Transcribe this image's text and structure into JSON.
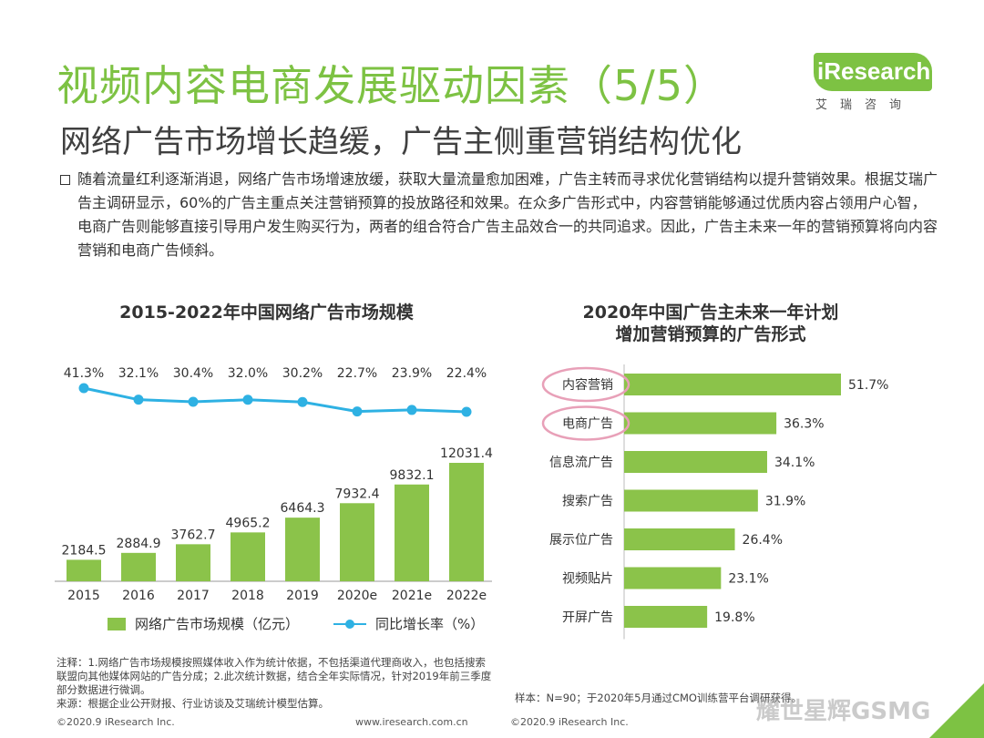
{
  "title": "视频内容电商发展驱动因素（5/5）",
  "subtitle": "网络广告市场增长趋缓，广告主侧重营销结构优化",
  "logo": {
    "text": "iResearch",
    "cn": "艾瑞咨询"
  },
  "body_text": "随着流量红利逐渐消退，网络广告市场增速放缓，获取大量流量愈加困难，广告主转而寻求优化营销结构以提升营销效果。根据艾瑞广告主调研显示，60%的广告主重点关注营销预算的投放路径和效果。在众多广告形式中，内容营销能够通过优质内容占领用户心智，电商广告则能够直接引导用户发生购买行为，两者的组合符合广告主品效合一的共同追求。因此，广告主未来一年的营销预算将向内容营销和电商广告倾斜。",
  "legend": {
    "bar": "网络广告市场规模（亿元）",
    "line": "同比增长率（%）"
  },
  "note": "注释：1.网络广告市场规模按照媒体收入作为统计依据，不包括渠道代理商收入，也包括搜索联盟向其他媒体网站的广告分成；2.此次统计数据，结合全年实际情况，针对2019年前三季度部分数据进行微调。",
  "source": "来源：根据企业公开财报、行业访谈及艾瑞统计模型估算。",
  "sample": "样本：N=90；于2020年5月通过CMO训练营平台调研获得。",
  "footer_left": "©2020.9 iResearch Inc.",
  "footer_mid": "www.iresearch.com.cn",
  "footer_right": "©2020.9 iResearch Inc.",
  "watermark": "耀世星辉GSMG",
  "colors": {
    "accent": "#7dc243",
    "bar": "#8bc34a",
    "line": "#2eb1e3",
    "highlight": "#e8a0b8"
  },
  "chart_data": [
    {
      "type": "bar",
      "title": "2015-2022年中国网络广告市场规模",
      "categories": [
        "2015",
        "2016",
        "2017",
        "2018",
        "2019",
        "2020e",
        "2021e",
        "2022e"
      ],
      "series": [
        {
          "name": "网络广告市场规模（亿元）",
          "type": "bar",
          "values": [
            2184.5,
            2884.9,
            3762.7,
            4965.2,
            6464.3,
            7932.4,
            9832.1,
            12031.4
          ],
          "labels": [
            "2184.5",
            "2884.9",
            "3762.7",
            "4965.2",
            "6464.3",
            "7932.4",
            "9832.1",
            "12031.4"
          ]
        },
        {
          "name": "同比增长率（%）",
          "type": "line",
          "values": [
            41.3,
            32.1,
            30.4,
            32.0,
            30.2,
            22.7,
            23.9,
            22.4
          ],
          "labels": [
            "41.3%",
            "32.1%",
            "30.4%",
            "32.0%",
            "30.2%",
            "22.7%",
            "23.9%",
            "22.4%"
          ]
        }
      ]
    },
    {
      "type": "bar",
      "orientation": "horizontal",
      "title": "2020年中国广告主未来一年计划增加营销预算的广告形式",
      "title_lines": [
        "2020年中国广告主未来一年计划",
        "增加营销预算的广告形式"
      ],
      "categories": [
        "内容营销",
        "电商广告",
        "信息流广告",
        "搜索广告",
        "展示位广告",
        "视频贴片",
        "开屏广告"
      ],
      "values": [
        51.7,
        36.3,
        34.1,
        31.9,
        26.4,
        23.1,
        19.8
      ],
      "labels": [
        "51.7%",
        "36.3%",
        "34.1%",
        "31.9%",
        "26.4%",
        "23.1%",
        "19.8%"
      ],
      "highlighted": [
        "内容营销",
        "电商广告"
      ]
    }
  ]
}
